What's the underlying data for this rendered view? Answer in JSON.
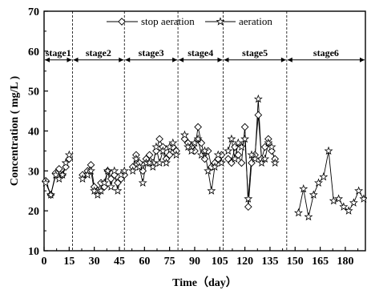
{
  "chart_data": {
    "type": "line",
    "xlabel": "Time（day）",
    "ylabel": "Concentration ( mg/L )",
    "xlim": [
      0,
      192
    ],
    "ylim": [
      10,
      70
    ],
    "xticks": [
      0,
      15,
      30,
      45,
      60,
      75,
      90,
      105,
      120,
      135,
      150,
      165,
      180
    ],
    "yticks": [
      10,
      20,
      30,
      40,
      50,
      60,
      70
    ],
    "legend_position": "top",
    "stages": [
      {
        "label": "stage1",
        "start": 0,
        "end": 17
      },
      {
        "label": "stage2",
        "start": 17,
        "end": 48
      },
      {
        "label": "stage3",
        "start": 48,
        "end": 80
      },
      {
        "label": "stage4",
        "start": 80,
        "end": 107
      },
      {
        "label": "stage5",
        "start": 107,
        "end": 145
      },
      {
        "label": "stage6",
        "start": 145,
        "end": 192
      }
    ],
    "stage_boundaries": [
      17,
      48,
      80,
      107,
      145
    ],
    "series": [
      {
        "name": "stop aeration",
        "marker": "diamond",
        "segments": [
          [
            [
              1,
              27.5
            ],
            [
              4,
              24
            ],
            [
              7,
              29.5
            ],
            [
              9,
              30.5
            ],
            [
              11,
              29
            ],
            [
              13,
              31
            ],
            [
              15,
              33
            ]
          ],
          [
            [
              23,
              29
            ],
            [
              26,
              30
            ],
            [
              28,
              31.5
            ],
            [
              30,
              26
            ],
            [
              32,
              25
            ],
            [
              34,
              27
            ],
            [
              36,
              26
            ],
            [
              38,
              30
            ],
            [
              40,
              28
            ],
            [
              42,
              29
            ],
            [
              44,
              27
            ],
            [
              46,
              28
            ],
            [
              48,
              29
            ]
          ],
          [
            [
              53,
              31
            ],
            [
              55,
              34
            ],
            [
              57,
              32
            ],
            [
              59,
              30
            ],
            [
              61,
              33
            ],
            [
              63,
              34
            ],
            [
              65,
              32
            ],
            [
              67,
              35
            ],
            [
              69,
              38
            ],
            [
              71,
              36
            ],
            [
              73,
              33
            ],
            [
              75,
              34
            ],
            [
              77,
              36
            ],
            [
              79,
              35
            ]
          ],
          [
            [
              84,
              38
            ],
            [
              86,
              37
            ],
            [
              88,
              36
            ],
            [
              90,
              35
            ],
            [
              92,
              41
            ],
            [
              94,
              37
            ],
            [
              96,
              33
            ],
            [
              98,
              35
            ],
            [
              100,
              31
            ],
            [
              102,
              32
            ],
            [
              104,
              33
            ],
            [
              106,
              34
            ]
          ],
          [
            [
              110,
              33
            ],
            [
              112,
              32
            ],
            [
              114,
              36
            ],
            [
              116,
              34
            ],
            [
              118,
              32
            ],
            [
              120,
              41
            ],
            [
              122,
              21
            ],
            [
              124,
              32
            ],
            [
              126,
              34
            ],
            [
              128,
              44
            ],
            [
              130,
              33
            ],
            [
              132,
              36
            ],
            [
              134,
              38
            ],
            [
              136,
              35
            ],
            [
              138,
              33
            ]
          ]
        ]
      },
      {
        "name": "aeration",
        "marker": "star",
        "segments": [
          [
            [
              1,
              27
            ],
            [
              4,
              24
            ],
            [
              7,
              29
            ],
            [
              9,
              28
            ],
            [
              11,
              29
            ],
            [
              13,
              32
            ],
            [
              15,
              34
            ]
          ],
          [
            [
              23,
              28
            ],
            [
              26,
              29
            ],
            [
              28,
              30
            ],
            [
              30,
              25
            ],
            [
              32,
              24
            ],
            [
              34,
              25
            ],
            [
              36,
              27
            ],
            [
              38,
              30
            ],
            [
              40,
              26
            ],
            [
              42,
              30
            ],
            [
              44,
              25
            ],
            [
              46,
              29
            ],
            [
              48,
              30
            ]
          ],
          [
            [
              53,
              30
            ],
            [
              55,
              33
            ],
            [
              57,
              31
            ],
            [
              59,
              27
            ],
            [
              61,
              32
            ],
            [
              63,
              32
            ],
            [
              65,
              31
            ],
            [
              67,
              36
            ],
            [
              69,
              32
            ],
            [
              71,
              35
            ],
            [
              73,
              32
            ],
            [
              75,
              36
            ],
            [
              77,
              37
            ],
            [
              79,
              34
            ]
          ],
          [
            [
              84,
              39
            ],
            [
              86,
              36
            ],
            [
              88,
              35
            ],
            [
              90,
              37
            ],
            [
              92,
              38
            ],
            [
              94,
              34
            ],
            [
              96,
              35
            ],
            [
              98,
              30
            ],
            [
              100,
              25
            ],
            [
              102,
              31
            ],
            [
              104,
              34
            ],
            [
              106,
              32
            ]
          ],
          [
            [
              110,
              35
            ],
            [
              112,
              38
            ],
            [
              114,
              33
            ],
            [
              116,
              37
            ],
            [
              118,
              36
            ],
            [
              120,
              38
            ],
            [
              122,
              23
            ],
            [
              124,
              34
            ],
            [
              126,
              33
            ],
            [
              128,
              48
            ],
            [
              130,
              32
            ],
            [
              132,
              33
            ],
            [
              134,
              37
            ],
            [
              136,
              36
            ],
            [
              138,
              32
            ]
          ],
          [
            [
              152,
              19.5
            ],
            [
              155,
              25.5
            ],
            [
              158,
              18.5
            ],
            [
              161,
              24
            ],
            [
              164,
              27
            ],
            [
              167,
              28.5
            ],
            [
              170,
              35
            ],
            [
              173,
              22.5
            ],
            [
              176,
              23
            ],
            [
              179,
              21
            ],
            [
              182,
              20
            ],
            [
              185,
              22
            ],
            [
              188,
              25
            ],
            [
              191,
              23
            ]
          ]
        ]
      }
    ]
  }
}
